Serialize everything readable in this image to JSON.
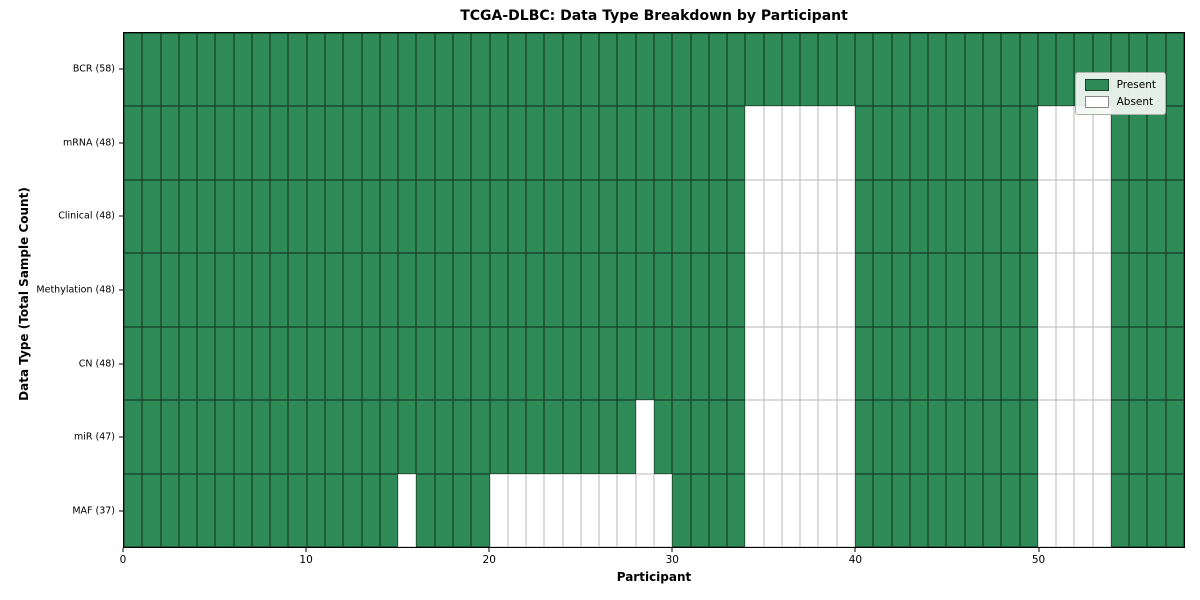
{
  "figure": {
    "title": "TCGA-DLBC: Data Type Breakdown by Participant",
    "xlabel": "Participant",
    "ylabel": "Data Type (Total Sample Count)"
  },
  "legend": {
    "present_label": "Present",
    "absent_label": "Absent",
    "position": "upper right"
  },
  "chart_data": {
    "type": "heatmap",
    "title": "TCGA-DLBC: Data Type Breakdown by Participant",
    "xlabel": "Participant",
    "ylabel": "Data Type (Total Sample Count)",
    "n_participants": 58,
    "xlim": [
      0,
      58
    ],
    "x_ticks": [
      0,
      10,
      20,
      30,
      40,
      50
    ],
    "grid": "cell-borders",
    "legend_entries": [
      "Present",
      "Absent"
    ],
    "legend_position": "upper right",
    "colors": {
      "present": "#2e8b57",
      "absent": "#ffffff"
    },
    "rows": [
      {
        "label": "BCR (58)",
        "data_type": "BCR",
        "total_samples": 58,
        "absent_participants": []
      },
      {
        "label": "mRNA (48)",
        "data_type": "mRNA",
        "total_samples": 48,
        "absent_participants": [
          34,
          35,
          36,
          37,
          38,
          39,
          50,
          51,
          52,
          53
        ]
      },
      {
        "label": "Clinical (48)",
        "data_type": "Clinical",
        "total_samples": 48,
        "absent_participants": [
          34,
          35,
          36,
          37,
          38,
          39,
          50,
          51,
          52,
          53
        ]
      },
      {
        "label": "Methylation (48)",
        "data_type": "Methylation",
        "total_samples": 48,
        "absent_participants": [
          34,
          35,
          36,
          37,
          38,
          39,
          50,
          51,
          52,
          53
        ]
      },
      {
        "label": "CN (48)",
        "data_type": "CN",
        "total_samples": 48,
        "absent_participants": [
          34,
          35,
          36,
          37,
          38,
          39,
          50,
          51,
          52,
          53
        ]
      },
      {
        "label": "miR (47)",
        "data_type": "miR",
        "total_samples": 47,
        "absent_participants": [
          28,
          34,
          35,
          36,
          37,
          38,
          39,
          50,
          51,
          52,
          53
        ]
      },
      {
        "label": "MAF (37)",
        "data_type": "MAF",
        "total_samples": 37,
        "absent_participants": [
          15,
          20,
          21,
          22,
          23,
          24,
          25,
          26,
          27,
          28,
          29,
          34,
          35,
          36,
          37,
          38,
          39,
          50,
          51,
          52,
          53
        ]
      }
    ]
  }
}
